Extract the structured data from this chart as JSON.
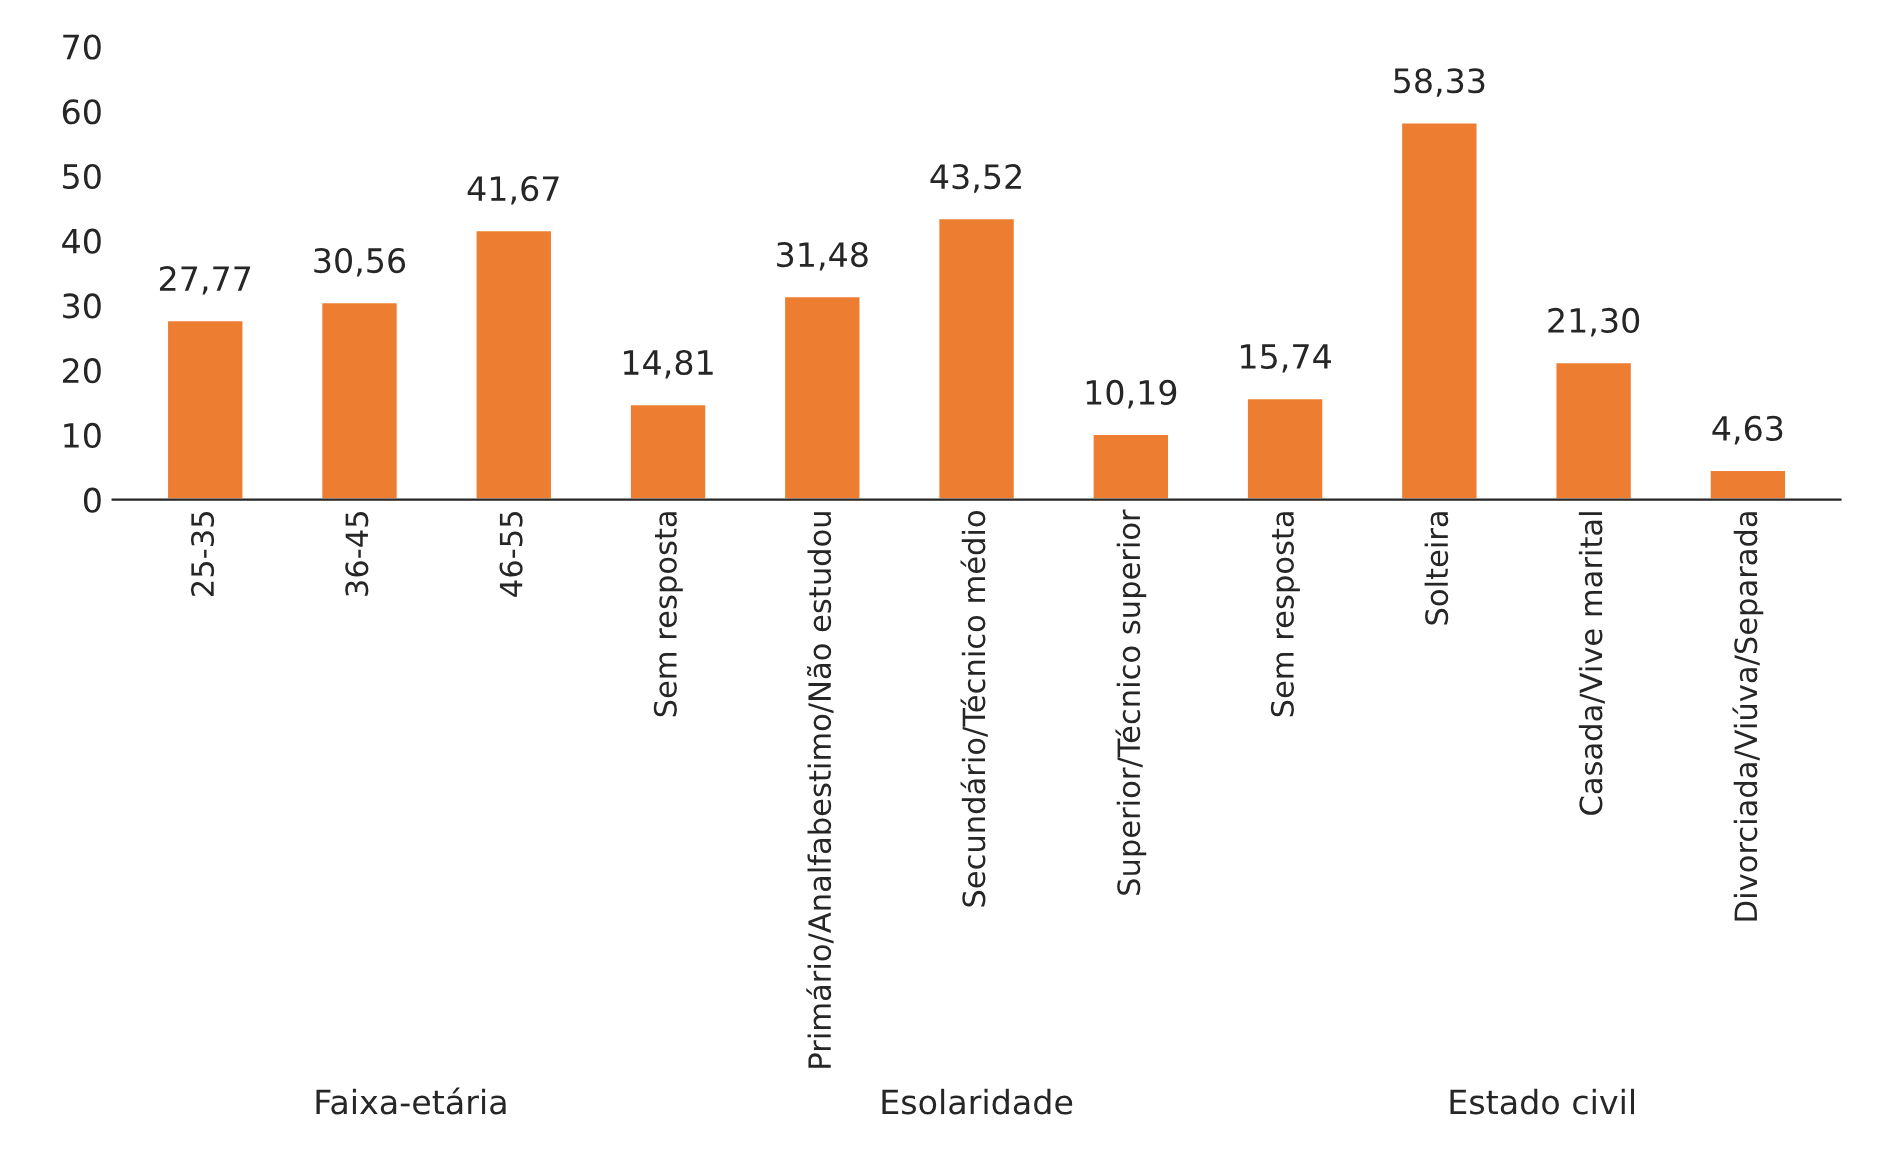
{
  "chart_data": {
    "type": "bar",
    "categories": [
      "25-35",
      "36-45",
      "46-55",
      "Sem resposta",
      "Primário/Analfabestimo/Não estudou",
      "Secundário/Técnico médio",
      "Superior/Técnico superior",
      "Sem resposta",
      "Solteira",
      "Casada/Vive marital",
      "Divorciada/Viúva/Separada"
    ],
    "values": [
      27.77,
      30.56,
      41.67,
      14.81,
      31.48,
      43.52,
      10.19,
      15.74,
      58.33,
      21.3,
      4.63
    ],
    "value_labels": [
      "27,77",
      "30,56",
      "41,67",
      "14,81",
      "31,48",
      "43,52",
      "10,19",
      "15,74",
      "58,33",
      "21,30",
      "4,63"
    ],
    "color": "#ed7d31",
    "ylim": [
      0,
      70
    ],
    "yticks": [
      0,
      10,
      20,
      30,
      40,
      50,
      60,
      70
    ],
    "grid": false,
    "annotations": [
      "Faixa-etária",
      "Esolaridade",
      "Estado civil"
    ]
  }
}
